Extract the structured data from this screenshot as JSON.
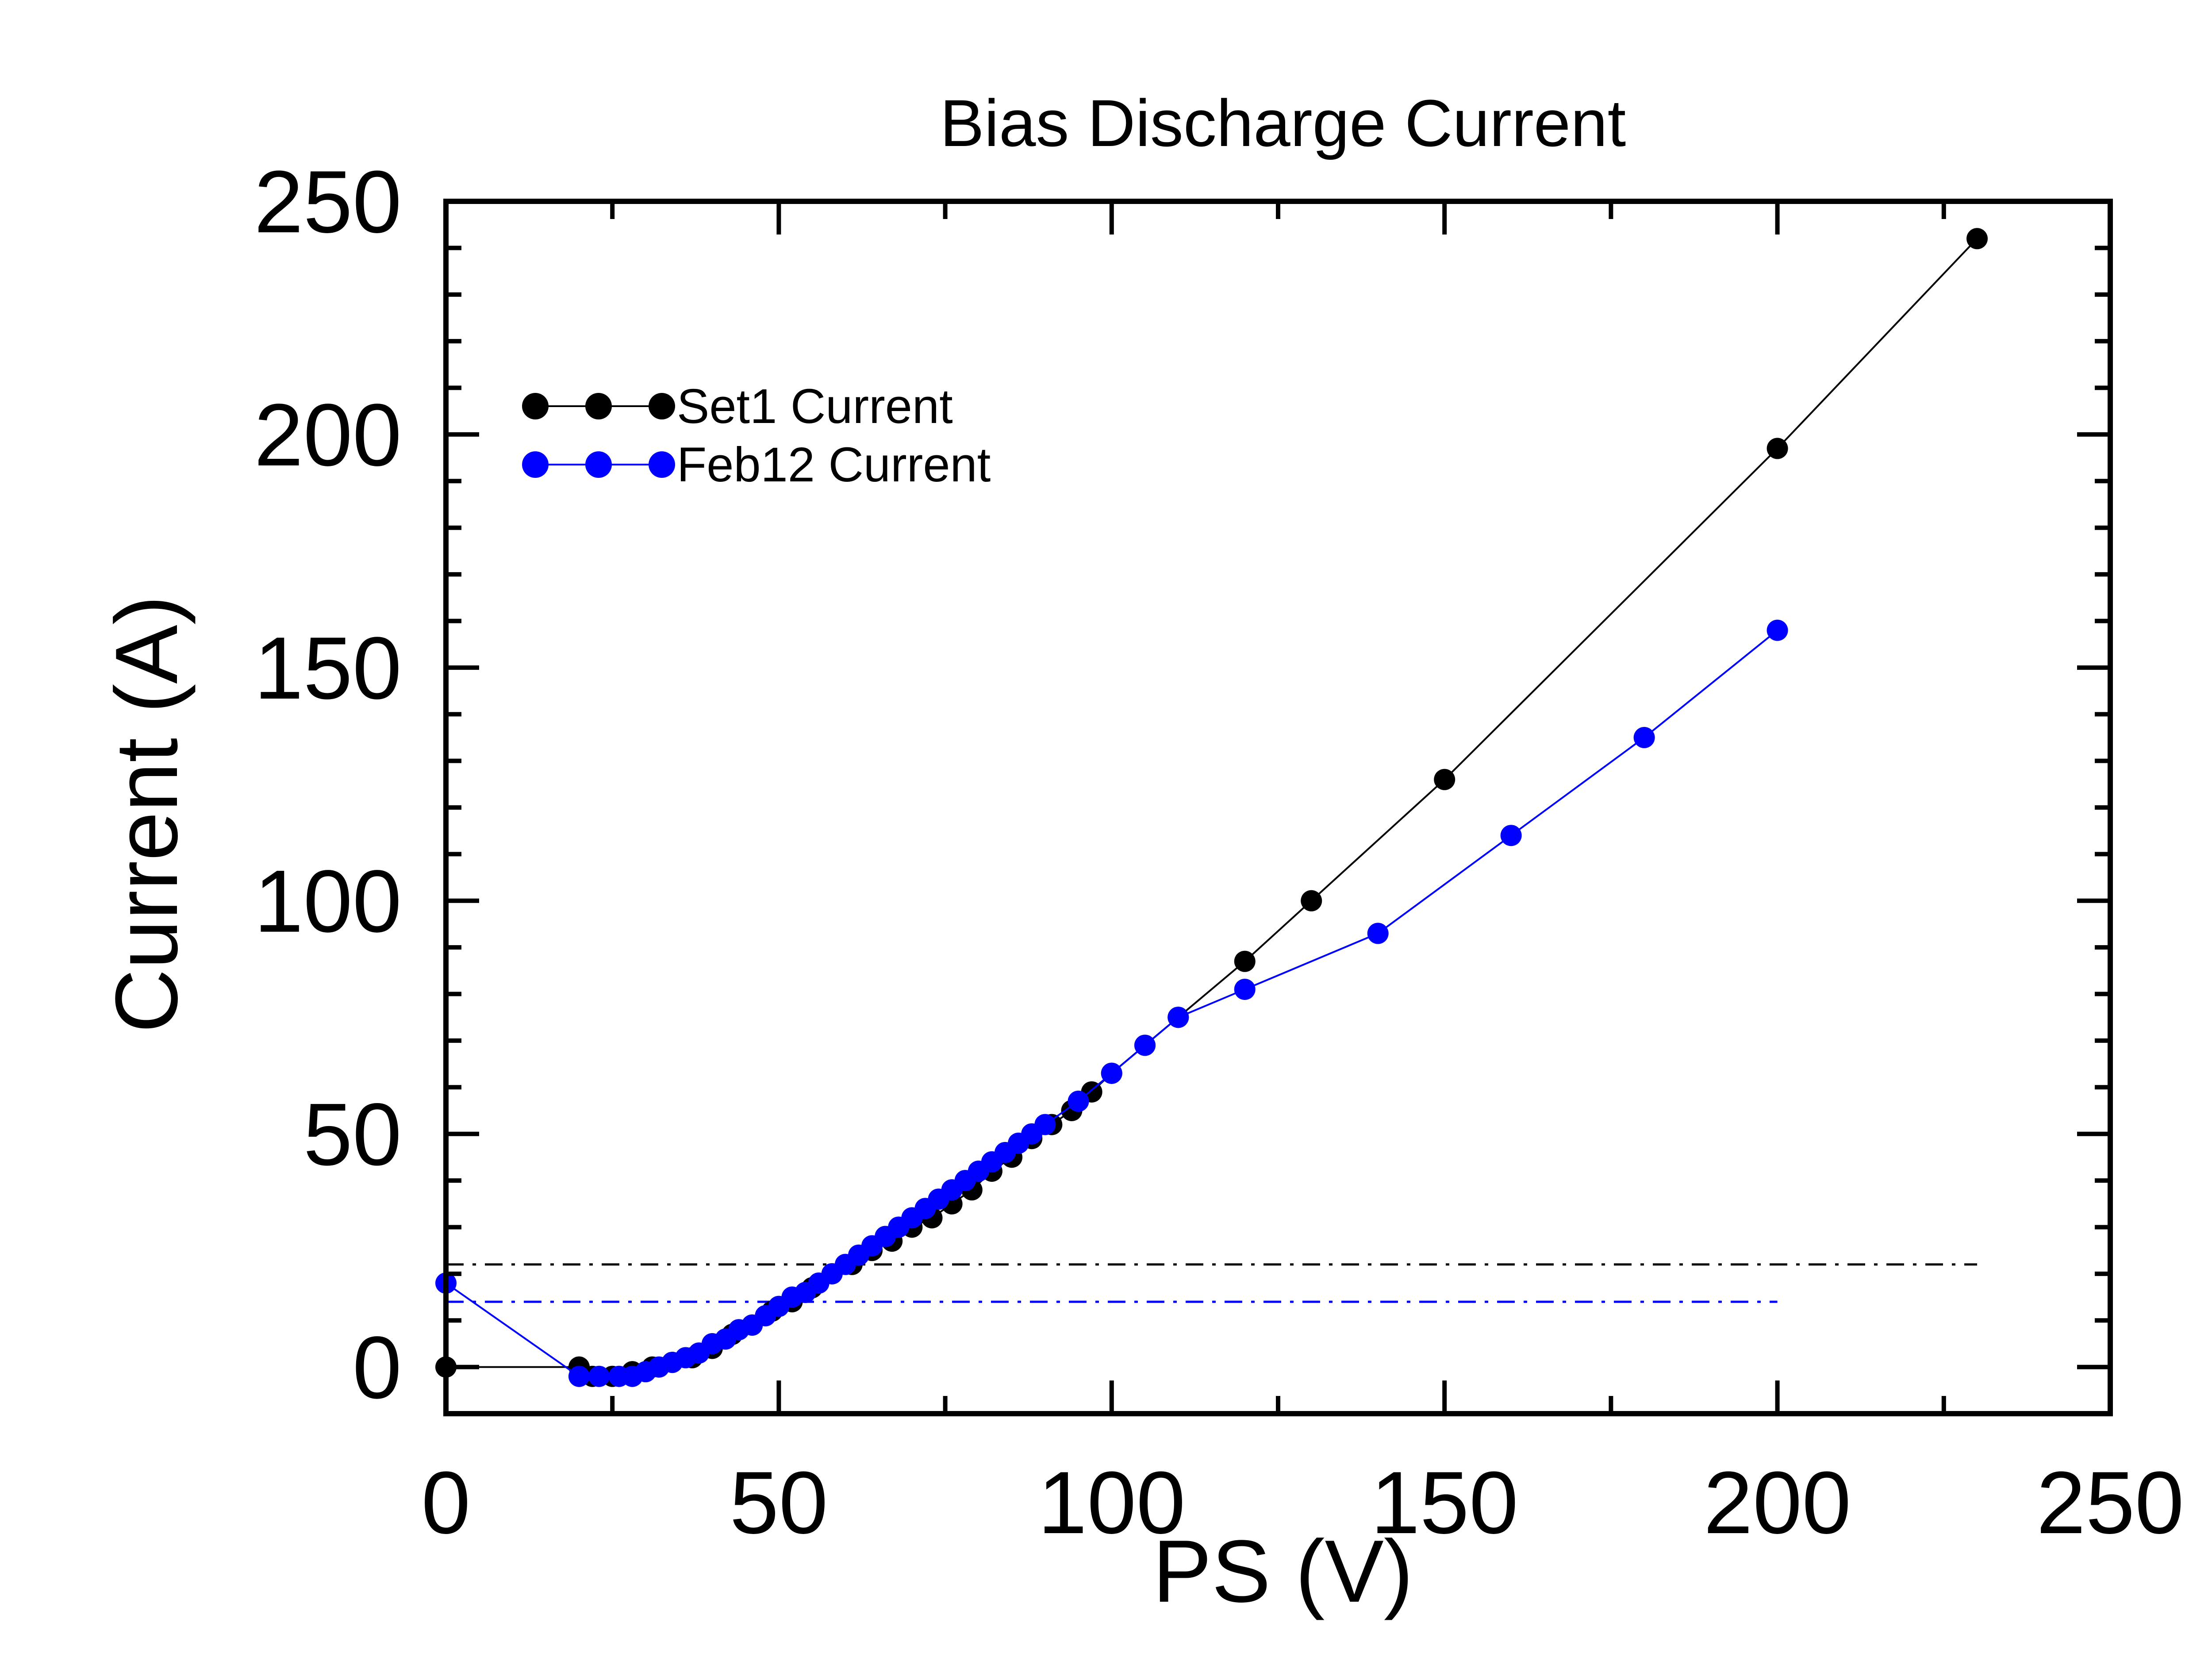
{
  "chart_data": {
    "type": "line",
    "title": "Bias Discharge Current",
    "xlabel": "PS (V)",
    "ylabel": "Current (A)",
    "xlim": [
      0,
      250
    ],
    "ylim": [
      -10,
      250
    ],
    "xticks": [
      0,
      50,
      100,
      150,
      200,
      250
    ],
    "yticks": [
      0,
      50,
      100,
      150,
      200,
      250
    ],
    "xtick_labels": [
      "0",
      "50",
      "100",
      "150",
      "200",
      "250"
    ],
    "ytick_labels": [
      "0",
      "50",
      "100",
      "150",
      "200",
      "250"
    ],
    "grid": false,
    "legend_position": "upper-left",
    "series": [
      {
        "name": "Set1 Current",
        "color": "#000000",
        "x": [
          0,
          20,
          22,
          25,
          28,
          31,
          34,
          37,
          40,
          43,
          46,
          49,
          52,
          55,
          58,
          61,
          64,
          67,
          70,
          73,
          76,
          79,
          82,
          85,
          88,
          91,
          94,
          97,
          100,
          105,
          110,
          120,
          130,
          150,
          200,
          230
        ],
        "y": [
          0,
          0,
          -2,
          -2,
          -1,
          0,
          1,
          2,
          4,
          7,
          9,
          12,
          14,
          17,
          20,
          22,
          25,
          27,
          30,
          32,
          35,
          38,
          42,
          45,
          49,
          52,
          55,
          59,
          63,
          69,
          75,
          87,
          100,
          126,
          197,
          242
        ]
      },
      {
        "name": "Feb12 Current",
        "color": "#0000ff",
        "x": [
          0,
          20,
          23,
          26,
          28,
          30,
          32,
          34,
          36,
          38,
          40,
          42,
          44,
          46,
          48,
          50,
          52,
          54,
          56,
          58,
          60,
          62,
          64,
          66,
          68,
          70,
          72,
          74,
          76,
          78,
          80,
          82,
          84,
          86,
          88,
          90,
          95,
          100,
          105,
          110,
          120,
          140,
          160,
          180,
          200
        ],
        "y": [
          18,
          -2,
          -2,
          -2,
          -2,
          -1,
          0,
          1,
          2,
          3,
          5,
          6,
          8,
          9,
          11,
          13,
          15,
          16,
          18,
          20,
          22,
          24,
          26,
          28,
          30,
          32,
          34,
          36,
          38,
          40,
          42,
          44,
          46,
          48,
          50,
          52,
          57,
          63,
          69,
          75,
          81,
          93,
          114,
          135,
          158
        ]
      }
    ],
    "reference_lines": [
      {
        "color": "#000000",
        "y": 22,
        "x_start": 0,
        "x_end": 230
      },
      {
        "color": "#0000ff",
        "y": 14,
        "x_start": 0,
        "x_end": 200
      }
    ]
  }
}
